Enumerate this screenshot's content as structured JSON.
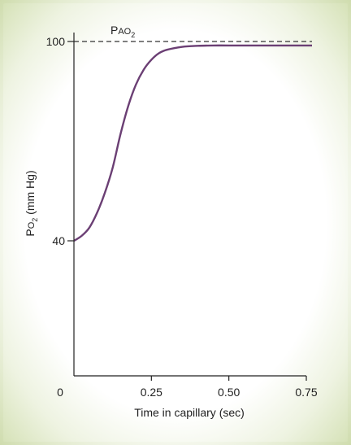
{
  "chart_data": {
    "type": "line",
    "title": "",
    "xlabel": "Time in capillary (sec)",
    "ylabel": "Po2 (mm Hg)",
    "ylabel_parts": {
      "main": "P",
      "small": "O",
      "sub": "2",
      "rest": " (mm Hg)"
    },
    "reference_line": {
      "value": 100,
      "style": "dashed",
      "label": {
        "main": "P",
        "small": "AO",
        "sub": "2"
      }
    },
    "xlim": [
      0,
      0.75
    ],
    "ylim": [
      0,
      100
    ],
    "x_ticks": [
      {
        "value": 0,
        "label": "0"
      },
      {
        "value": 0.25,
        "label": "0.25"
      },
      {
        "value": 0.5,
        "label": "0.50"
      },
      {
        "value": 0.75,
        "label": "0.75"
      }
    ],
    "y_ticks": [
      {
        "value": 40,
        "label": "40"
      },
      {
        "value": 100,
        "label": "100"
      }
    ],
    "series": [
      {
        "color": "#6b3f74",
        "x": [
          0,
          0.025,
          0.05,
          0.075,
          0.1,
          0.125,
          0.15,
          0.175,
          0.2,
          0.225,
          0.25,
          0.275,
          0.3,
          0.35,
          0.4,
          0.45,
          0.5,
          0.6,
          0.7,
          0.75
        ],
        "y": [
          40,
          41.5,
          44,
          48.5,
          54.5,
          62,
          72,
          80.5,
          87,
          91.5,
          94.5,
          96.5,
          97.5,
          98.4,
          98.7,
          98.8,
          98.8,
          98.8,
          98.8,
          98.8
        ]
      }
    ]
  }
}
